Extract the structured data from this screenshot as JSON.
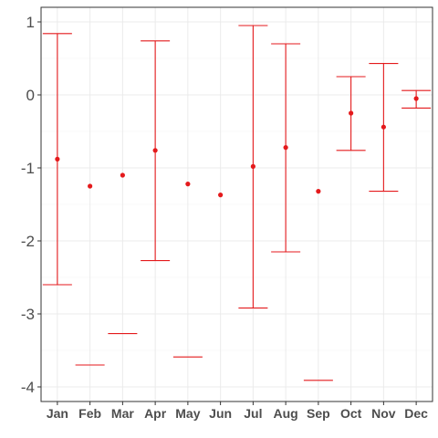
{
  "chart_data": {
    "type": "errorbar",
    "title": "",
    "xlabel": "",
    "ylabel": "",
    "categories": [
      "Jan",
      "Feb",
      "Mar",
      "Apr",
      "May",
      "Jun",
      "Jul",
      "Aug",
      "Sep",
      "Oct",
      "Nov",
      "Dec"
    ],
    "points": [
      -0.88,
      -1.25,
      -1.1,
      -0.76,
      -1.22,
      -1.37,
      -0.98,
      -0.72,
      -1.32,
      -0.25,
      -0.44,
      -0.05
    ],
    "lower": [
      -2.6,
      -3.7,
      -3.27,
      -2.27,
      -3.59,
      null,
      -2.92,
      -2.15,
      -3.91,
      -0.76,
      -1.32,
      -0.18
    ],
    "upper": [
      0.84,
      null,
      null,
      0.74,
      null,
      null,
      0.95,
      0.7,
      null,
      0.25,
      0.43,
      0.06
    ],
    "yticks": [
      1,
      0,
      -1,
      -2,
      -3,
      -4
    ],
    "ytick_labels": [
      "1",
      "0",
      "-1",
      "-2",
      "-3",
      "-4"
    ],
    "ylim": [
      -4.2,
      1.2
    ],
    "grid": true,
    "color": "#e41a1c"
  }
}
